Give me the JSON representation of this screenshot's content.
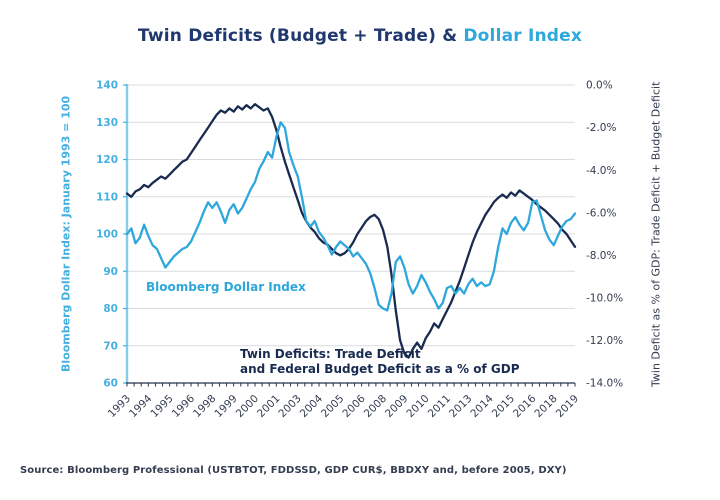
{
  "title": {
    "dark_part": "Twin Deficits (Budget + Trade) & ",
    "accent_part": "Dollar Index"
  },
  "source_note": "Source: Bloomberg Professional (USTBTOT, FDDSSD, GDP CUR$, BBDXY and, before 2005, DXY)",
  "colors": {
    "navy_line": "#192b50",
    "blue_line": "#2ea7db",
    "axis_blue": "#45b0e0",
    "title_navy": "#20386e",
    "dark_text": "#333d50",
    "grid": "#d8dcdf",
    "axis_dark": "#26334f"
  },
  "chart_data": {
    "type": "line",
    "title": "Twin Deficits (Budget + Trade) & Dollar Index",
    "grid": "horizontal",
    "legend": "none (inline annotations)",
    "left_axis": {
      "label": "Bloomberg Dollar Index: January 1993 = 100",
      "range": [
        60,
        140
      ],
      "ticks": [
        140,
        130,
        120,
        110,
        100,
        90,
        80,
        70,
        60
      ]
    },
    "right_axis": {
      "label": "Twin Deficit as % of GDP: Trade Deficit + Budget Deficit",
      "range": [
        -14,
        0
      ],
      "ticks": [
        "0.0%",
        "-2.0%",
        "-4.0%",
        "-6.0%",
        "-8.0%",
        "-10.0%",
        "-12.0%",
        "-14.0%"
      ]
    },
    "x_axis": {
      "range": [
        1993,
        2019.25
      ],
      "label_interval_years": 1.25,
      "labels": [
        "1993",
        "1994",
        "1995",
        "1996",
        "1998",
        "1999",
        "2000",
        "2001",
        "2003",
        "2004",
        "2005",
        "2006",
        "2008",
        "2009",
        "2010",
        "2011",
        "2013",
        "2014",
        "2015",
        "2016",
        "2018",
        "2019"
      ]
    },
    "annotations": [
      {
        "text": "Bloomberg Dollar Index"
      },
      {
        "lines": [
          "Twin Deficits: Trade Deficit",
          "and Federal Budget Deficit as a % of GDP"
        ]
      }
    ],
    "series": [
      {
        "name": "Twin Deficit (Trade + Budget, % of GDP)",
        "axis": "right",
        "color_key": "navy_line",
        "x_start": 1993,
        "x_step": 0.25,
        "values": [
          -5.1,
          -5.25,
          -5.0,
          -4.9,
          -4.7,
          -4.8,
          -4.6,
          -4.45,
          -4.3,
          -4.4,
          -4.2,
          -4.0,
          -3.8,
          -3.6,
          -3.5,
          -3.2,
          -2.9,
          -2.6,
          -2.3,
          -2.0,
          -1.7,
          -1.4,
          -1.2,
          -1.3,
          -1.1,
          -1.25,
          -1.0,
          -1.15,
          -0.95,
          -1.1,
          -0.9,
          -1.05,
          -1.2,
          -1.1,
          -1.5,
          -2.1,
          -2.9,
          -3.6,
          -4.2,
          -4.8,
          -5.4,
          -6.0,
          -6.4,
          -6.7,
          -6.9,
          -7.2,
          -7.4,
          -7.5,
          -7.7,
          -7.9,
          -8.0,
          -7.9,
          -7.7,
          -7.4,
          -7.0,
          -6.7,
          -6.4,
          -6.2,
          -6.1,
          -6.3,
          -6.8,
          -7.6,
          -8.9,
          -10.6,
          -12.0,
          -12.6,
          -12.8,
          -12.4,
          -12.1,
          -12.4,
          -11.9,
          -11.6,
          -11.2,
          -11.4,
          -11.0,
          -10.6,
          -10.2,
          -9.7,
          -9.2,
          -8.6,
          -8.0,
          -7.4,
          -6.9,
          -6.5,
          -6.1,
          -5.8,
          -5.5,
          -5.3,
          -5.15,
          -5.3,
          -5.05,
          -5.2,
          -4.95,
          -5.1,
          -5.25,
          -5.4,
          -5.6,
          -5.75,
          -5.9,
          -6.1,
          -6.3,
          -6.5,
          -6.8,
          -7.0,
          -7.3,
          -7.6
        ]
      },
      {
        "name": "Bloomberg Dollar Index (Jan 1993 = 100)",
        "axis": "left",
        "color_key": "blue_line",
        "x_start": 1993,
        "x_step": 0.25,
        "values": [
          100,
          101.5,
          97.5,
          99,
          102.5,
          99.5,
          97,
          96,
          93.5,
          91,
          92.5,
          94,
          95,
          96,
          96.5,
          98,
          100.5,
          103,
          106,
          108.5,
          107,
          108.5,
          106,
          103,
          106.5,
          108,
          105.5,
          107,
          109.5,
          112,
          114,
          117.5,
          119.5,
          122,
          120.5,
          126,
          130,
          128.5,
          122,
          118.5,
          115.5,
          110,
          103.5,
          102,
          103.5,
          100.5,
          99,
          97,
          94.5,
          96.5,
          98,
          97,
          96,
          94,
          95,
          93.5,
          92,
          89.5,
          85.5,
          81,
          80,
          79.5,
          84,
          92.5,
          94,
          91,
          86.5,
          84,
          86,
          89,
          87,
          84.5,
          82.5,
          80,
          81.5,
          85.5,
          86,
          84,
          85.5,
          84,
          86.5,
          88,
          86,
          87,
          86,
          86.5,
          90,
          96.5,
          101.5,
          100,
          103,
          104.5,
          102.5,
          101,
          103,
          108.5,
          109,
          105,
          101,
          98.5,
          97,
          99.5,
          102,
          103.5,
          104,
          105.5
        ]
      }
    ]
  }
}
